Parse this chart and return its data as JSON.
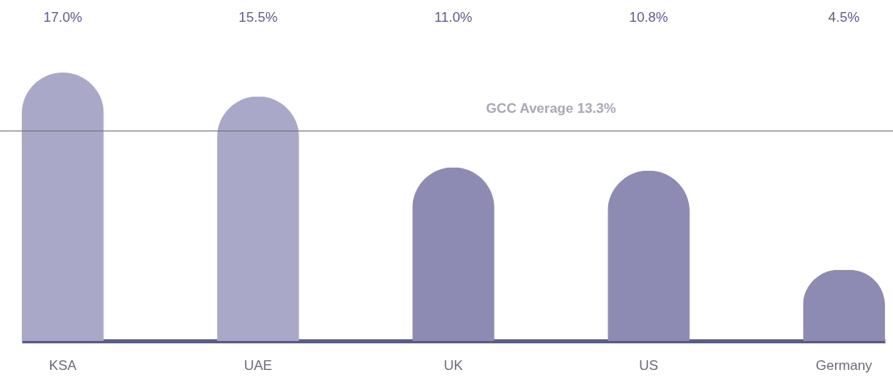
{
  "chart_data": {
    "type": "bar",
    "categories": [
      "KSA",
      "UAE",
      "UK",
      "US",
      "Germany"
    ],
    "values": [
      17.0,
      15.5,
      11.0,
      10.8,
      4.5
    ],
    "colors": [
      "#aaa8c8",
      "#aaa8c8",
      "#8d8ab4",
      "#8d8ab4",
      "#8d8ab4"
    ],
    "value_labels": [
      "17.0%",
      "15.5%",
      "11.0%",
      "10.8%",
      "4.5%"
    ],
    "ref_lines": [
      {
        "axis": "y",
        "value": 13.3,
        "label": "GCC Average 13.3%",
        "color": "#6e6e80"
      }
    ]
  }
}
